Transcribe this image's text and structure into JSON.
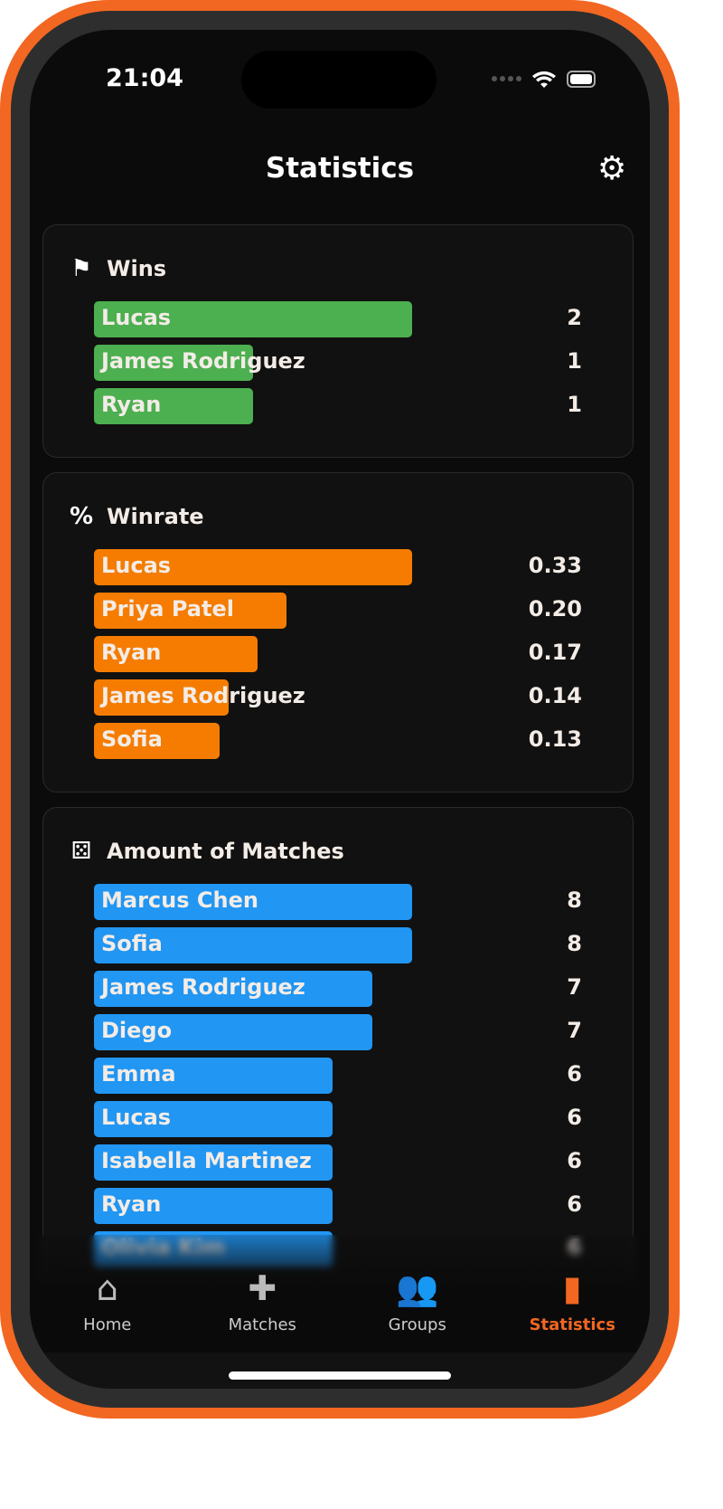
{
  "status": {
    "time": "21:04"
  },
  "header": {
    "title": "Statistics",
    "settings_icon": "gear-icon"
  },
  "colors": {
    "wins": "#4caf50",
    "winrate": "#f57c00",
    "matches": "#2196f3",
    "accent": "#f26722"
  },
  "sections": [
    {
      "title": "Wins",
      "icon": "checkered-flag-icon",
      "max": 2,
      "color": "#4caf50",
      "rows": [
        {
          "name": "Lucas",
          "value": "2",
          "num": 2
        },
        {
          "name": "James Rodriguez",
          "value": "1",
          "num": 1
        },
        {
          "name": "Ryan",
          "value": "1",
          "num": 1
        }
      ]
    },
    {
      "title": "Winrate",
      "icon": "percent-icon",
      "max": 0.33,
      "color": "#f57c00",
      "rows": [
        {
          "name": "Lucas",
          "value": "0.33",
          "num": 0.33
        },
        {
          "name": "Priya Patel",
          "value": "0.20",
          "num": 0.2
        },
        {
          "name": "Ryan",
          "value": "0.17",
          "num": 0.17
        },
        {
          "name": "James Rodriguez",
          "value": "0.14",
          "num": 0.14
        },
        {
          "name": "Sofia",
          "value": "0.13",
          "num": 0.13
        }
      ]
    },
    {
      "title": "Amount of Matches",
      "icon": "dice-icon",
      "max": 8,
      "color": "#2196f3",
      "rows": [
        {
          "name": "Marcus Chen",
          "value": "8",
          "num": 8
        },
        {
          "name": "Sofia",
          "value": "8",
          "num": 8
        },
        {
          "name": "James Rodriguez",
          "value": "7",
          "num": 7
        },
        {
          "name": "Diego",
          "value": "7",
          "num": 7
        },
        {
          "name": "Emma",
          "value": "6",
          "num": 6
        },
        {
          "name": "Lucas",
          "value": "6",
          "num": 6
        },
        {
          "name": "Isabella Martinez",
          "value": "6",
          "num": 6
        },
        {
          "name": "Ryan",
          "value": "6",
          "num": 6
        },
        {
          "name": "Olivia Kim",
          "value": "6",
          "num": 6
        }
      ]
    }
  ],
  "tabs": [
    {
      "label": "Home",
      "icon": "home-icon"
    },
    {
      "label": "Matches",
      "icon": "gamepad-icon"
    },
    {
      "label": "Groups",
      "icon": "groups-icon"
    },
    {
      "label": "Statistics",
      "icon": "bar-chart-icon",
      "active": true
    }
  ]
}
